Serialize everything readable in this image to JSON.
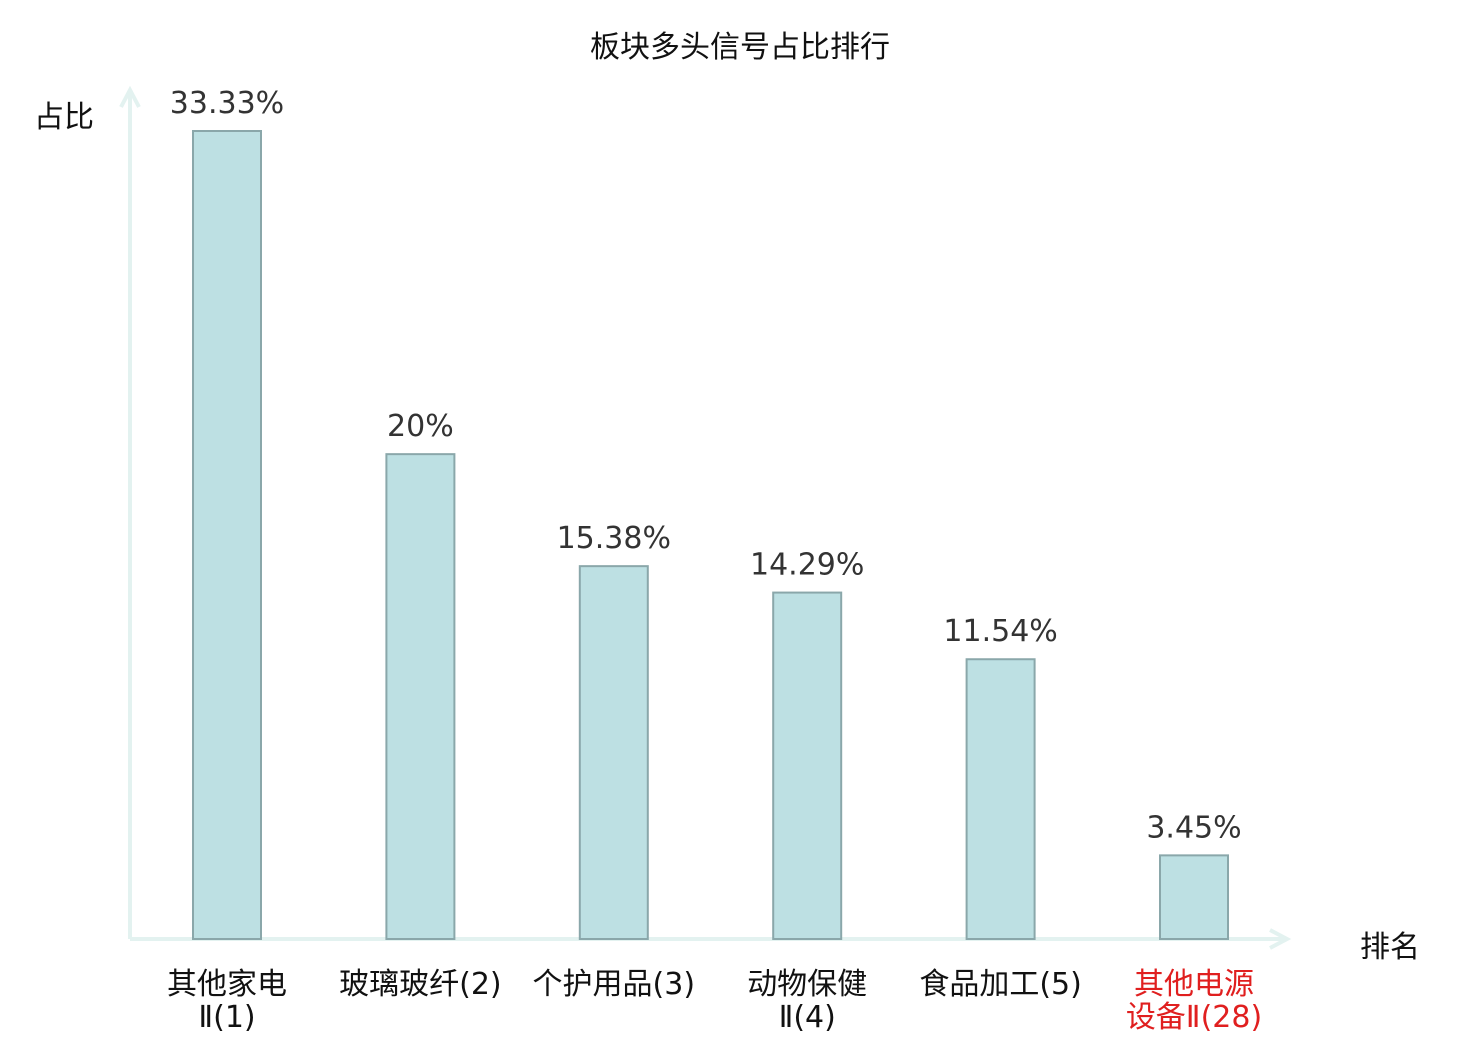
{
  "chart_data": {
    "type": "bar",
    "title": "板块多头信号占比排行",
    "ylabel": "占比",
    "xlabel": "排名",
    "ylim": [
      0,
      33.33
    ],
    "grid": false,
    "categories": [
      [
        "其他家电",
        "Ⅱ(1)"
      ],
      [
        "玻璃玻纤(2)"
      ],
      [
        "个护用品(3)"
      ],
      [
        "动物保健",
        "Ⅱ(4)"
      ],
      [
        "食品加工(5)"
      ],
      [
        "其他电源",
        "设备Ⅱ(28)"
      ]
    ],
    "values": [
      33.33,
      20,
      15.38,
      14.29,
      11.54,
      3.45
    ],
    "value_labels": [
      "33.33%",
      "20%",
      "15.38%",
      "14.29%",
      "11.54%",
      "3.45%"
    ],
    "highlighted_index": 5
  },
  "colors": {
    "bar_fill": "#bde0e3",
    "bar_stroke": "#8aa7aa",
    "axis": "#e3f2f0",
    "text": "#111111",
    "value_text": "#333333",
    "highlight": "#e01f1f"
  }
}
